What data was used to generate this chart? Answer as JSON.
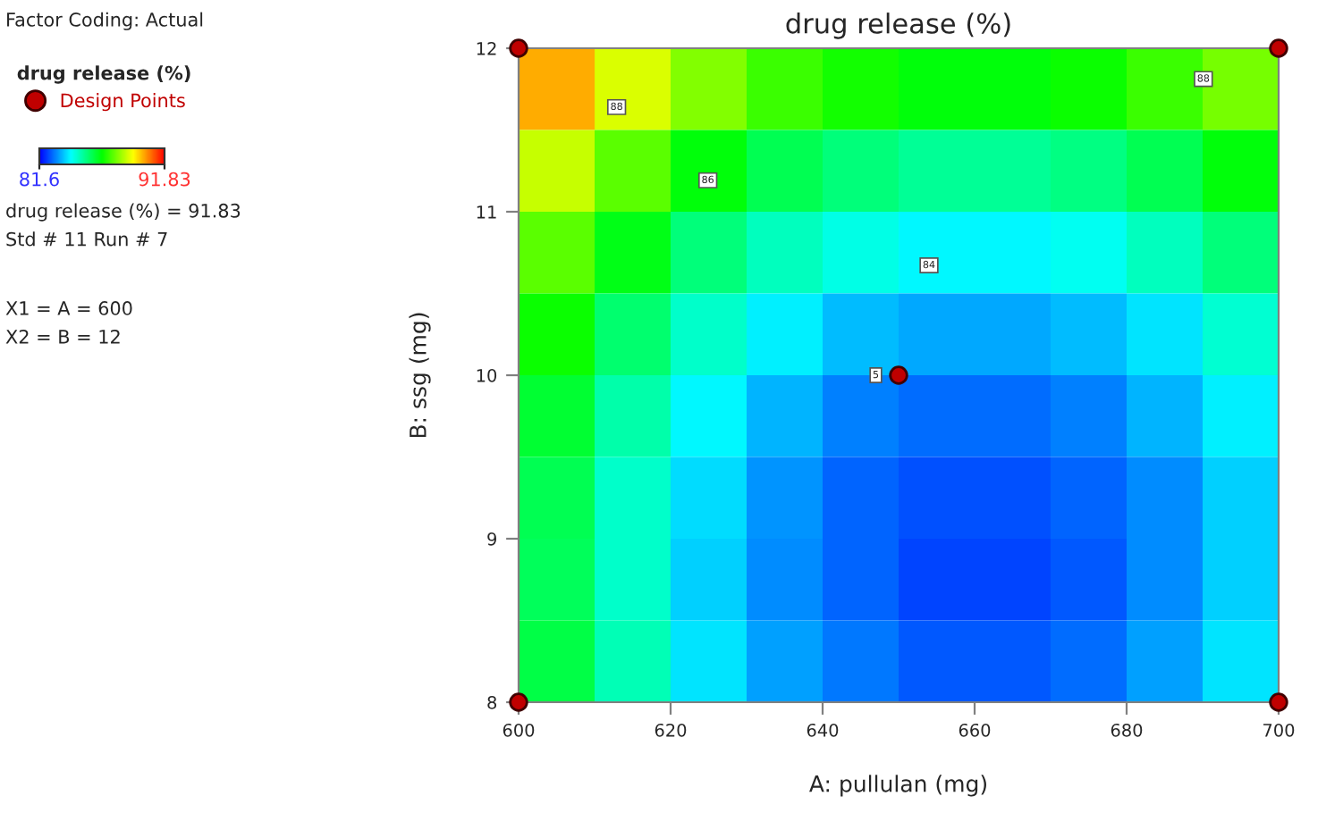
{
  "chart_data": {
    "type": "heatmap",
    "title": "drug release (%)",
    "xlabel": "A: pullulan (mg)",
    "ylabel": "B: ssg (mg)",
    "x": [
      605,
      615,
      625,
      635,
      645,
      655,
      665,
      675,
      685,
      695
    ],
    "y": [
      11.75,
      11.25,
      10.75,
      10.25,
      9.75,
      9.25,
      8.75,
      8.25
    ],
    "cells": [
      [
        90.1,
        88.9,
        88.0,
        87.3,
        86.9,
        86.6,
        86.6,
        86.8,
        87.3,
        87.9
      ],
      [
        88.7,
        87.6,
        86.6,
        85.9,
        85.5,
        85.2,
        85.2,
        85.4,
        85.9,
        86.6
      ],
      [
        87.6,
        86.5,
        85.5,
        84.8,
        84.4,
        84.1,
        84.1,
        84.3,
        84.8,
        85.5
      ],
      [
        86.8,
        85.6,
        84.7,
        84.0,
        83.5,
        83.3,
        83.3,
        83.5,
        83.9,
        84.6
      ],
      [
        86.2,
        85.0,
        84.1,
        83.4,
        82.9,
        82.7,
        82.7,
        82.9,
        83.4,
        84.0
      ],
      [
        85.9,
        84.7,
        83.8,
        83.1,
        82.6,
        82.4,
        82.4,
        82.6,
        83.0,
        83.7
      ],
      [
        85.8,
        84.7,
        83.7,
        83.0,
        82.6,
        82.3,
        82.3,
        82.5,
        83.0,
        83.7
      ],
      [
        86.0,
        84.9,
        83.9,
        83.2,
        82.8,
        82.5,
        82.5,
        82.7,
        83.2,
        83.9
      ]
    ],
    "clim": [
      81.6,
      91.83
    ],
    "cticks": [
      81.6,
      91.83
    ],
    "xlim": [
      600,
      700
    ],
    "ylim": [
      8,
      12
    ],
    "xticks": [
      600,
      620,
      640,
      660,
      680,
      700
    ],
    "yticks": [
      8,
      9,
      10,
      11,
      12
    ],
    "series": [
      {
        "type": "scatter",
        "name": "Design Points",
        "color": "#c00000",
        "x": [
          600,
          600,
          700,
          700,
          650
        ],
        "values": [
          8,
          12,
          8,
          12,
          10
        ]
      }
    ],
    "legend": "left",
    "legend_title": "drug release (%)",
    "annotations": [
      "Factor Coding: Actual",
      "drug release (%) = 91.83",
      "Std # 11 Run # 7",
      "X1 = A = 600",
      "X2 = B = 12",
      "88",
      "86",
      "84",
      "88",
      {
        "text": "5",
        "x": 647,
        "y": 10
      }
    ]
  }
}
